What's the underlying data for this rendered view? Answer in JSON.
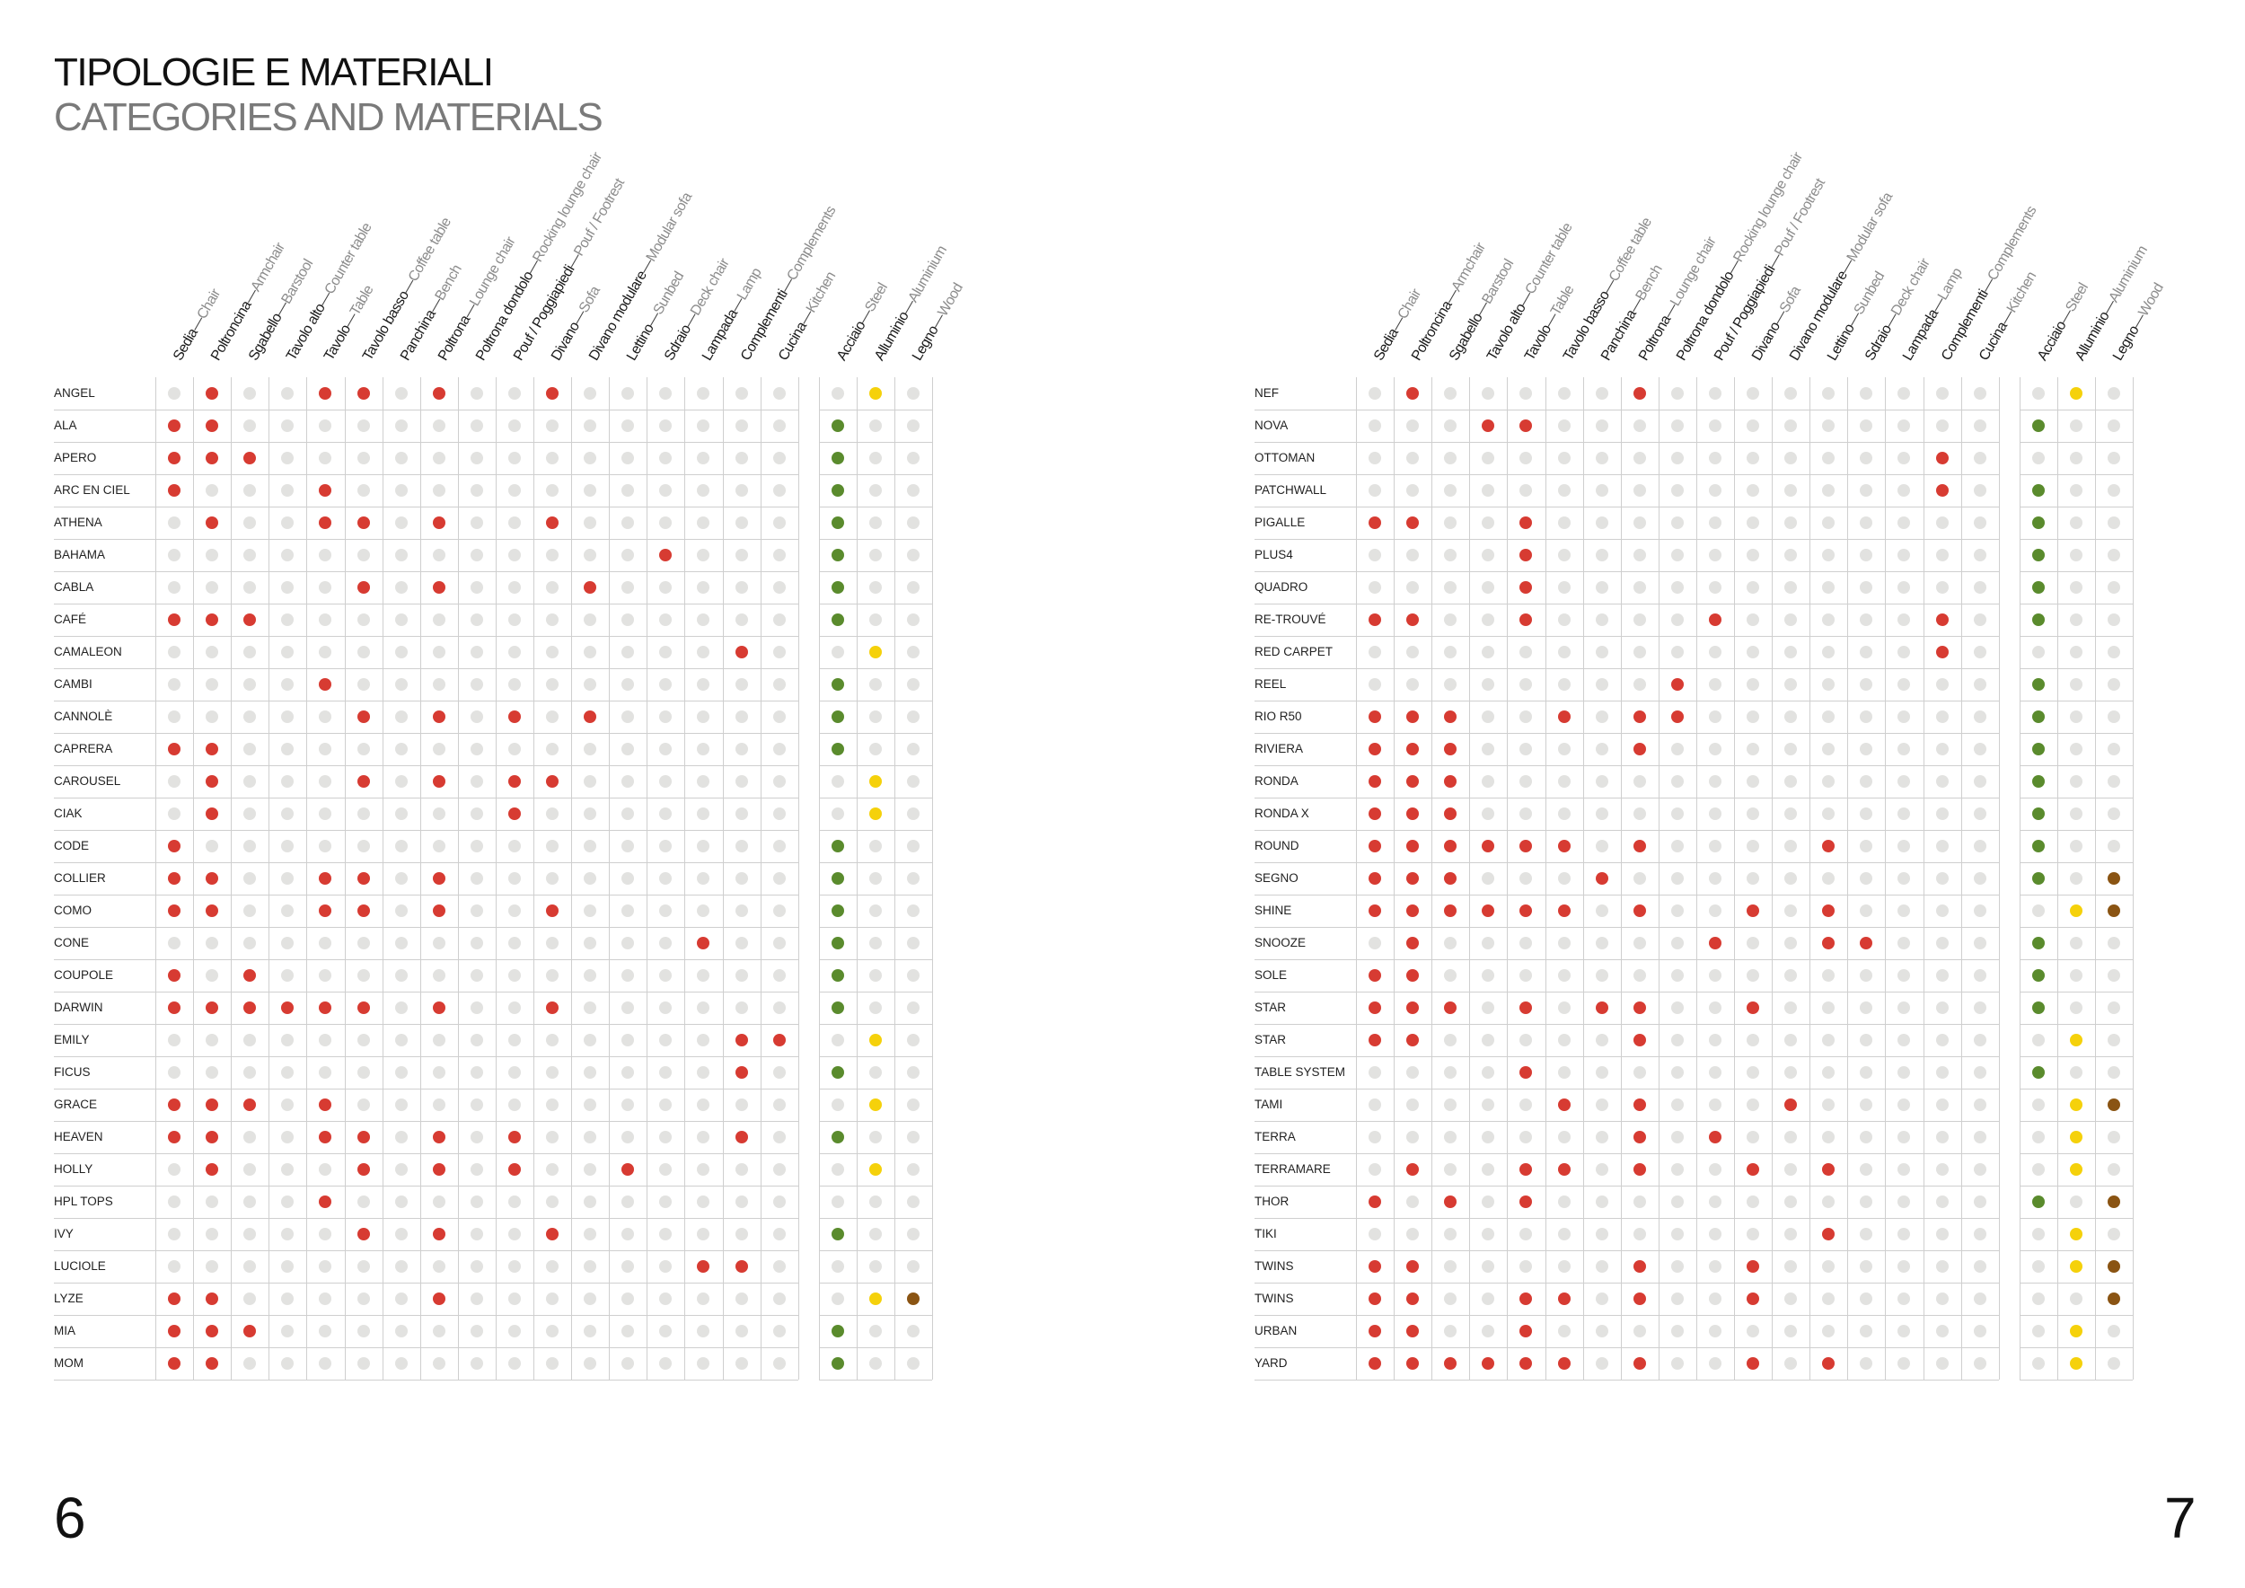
{
  "title": {
    "it": "TIPOLOGIE E MATERIALI",
    "en": "CATEGORIES AND MATERIALS"
  },
  "colors": {
    "category": "#d73b32",
    "steel": "#5a8b2d",
    "aluminium": "#f5d10b",
    "wood": "#8a5413",
    "empty": "#e2e2e0"
  },
  "categories": [
    {
      "it": "Sedia",
      "en": "Chair"
    },
    {
      "it": "Poltroncina",
      "en": "Armchair"
    },
    {
      "it": "Sgabello",
      "en": "Barstool"
    },
    {
      "it": "Tavolo alto",
      "en": "Counter table"
    },
    {
      "it": "Tavolo",
      "en": "Table"
    },
    {
      "it": "Tavolo basso",
      "en": "Coffee table"
    },
    {
      "it": "Panchina",
      "en": "Bench"
    },
    {
      "it": "Poltrona",
      "en": "Lounge chair"
    },
    {
      "it": "Poltrona dondolo",
      "en": "Rocking lounge chair"
    },
    {
      "it": "Pouf / Poggiapiedi",
      "en": "Pouf / Footrest"
    },
    {
      "it": "Divano",
      "en": "Sofa"
    },
    {
      "it": "Divano modulare",
      "en": "Modular sofa"
    },
    {
      "it": "Lettino",
      "en": "Sunbed"
    },
    {
      "it": "Sdraio",
      "en": "Deck chair"
    },
    {
      "it": "Lampada",
      "en": "Lamp"
    },
    {
      "it": "Complementi",
      "en": "Complements"
    },
    {
      "it": "Cucina",
      "en": "Kitchen"
    }
  ],
  "materials": [
    {
      "it": "Acciaio",
      "en": "Steel",
      "key": "steel"
    },
    {
      "it": "Alluminio",
      "en": "Aluminium",
      "key": "alu"
    },
    {
      "it": "Legno",
      "en": "Wood",
      "key": "wood"
    }
  ],
  "pages": [
    {
      "number": "6",
      "products": [
        {
          "name": "ANGEL",
          "cats": [
            1,
            4,
            5,
            7,
            10
          ],
          "mats": [
            "alu"
          ]
        },
        {
          "name": "ALA",
          "cats": [
            0,
            1
          ],
          "mats": [
            "steel"
          ]
        },
        {
          "name": "APERO",
          "cats": [
            0,
            1,
            2
          ],
          "mats": [
            "steel"
          ]
        },
        {
          "name": "ARC EN CIEL",
          "cats": [
            0,
            4
          ],
          "mats": [
            "steel"
          ]
        },
        {
          "name": "ATHENA",
          "cats": [
            1,
            4,
            5,
            7,
            10
          ],
          "mats": [
            "steel"
          ]
        },
        {
          "name": "BAHAMA",
          "cats": [
            13
          ],
          "mats": [
            "steel"
          ]
        },
        {
          "name": "CABLA",
          "cats": [
            5,
            7,
            11
          ],
          "mats": [
            "steel"
          ]
        },
        {
          "name": "CAFÉ",
          "cats": [
            0,
            1,
            2
          ],
          "mats": [
            "steel"
          ]
        },
        {
          "name": "CAMALEON",
          "cats": [
            15
          ],
          "mats": [
            "alu"
          ]
        },
        {
          "name": "CAMBI",
          "cats": [
            4
          ],
          "mats": [
            "steel"
          ]
        },
        {
          "name": "CANNOLÈ",
          "cats": [
            5,
            7,
            9,
            11
          ],
          "mats": [
            "steel"
          ]
        },
        {
          "name": "CAPRERA",
          "cats": [
            0,
            1
          ],
          "mats": [
            "steel"
          ]
        },
        {
          "name": "CAROUSEL",
          "cats": [
            1,
            5,
            7,
            9,
            10
          ],
          "mats": [
            "alu"
          ]
        },
        {
          "name": "CIAK",
          "cats": [
            1,
            9
          ],
          "mats": [
            "alu"
          ]
        },
        {
          "name": "CODE",
          "cats": [
            0
          ],
          "mats": [
            "steel"
          ]
        },
        {
          "name": "COLLIER",
          "cats": [
            0,
            1,
            4,
            5,
            7
          ],
          "mats": [
            "steel"
          ]
        },
        {
          "name": "COMO",
          "cats": [
            0,
            1,
            4,
            5,
            7,
            10
          ],
          "mats": [
            "steel"
          ]
        },
        {
          "name": "CONE",
          "cats": [
            14
          ],
          "mats": [
            "steel"
          ]
        },
        {
          "name": "COUPOLE",
          "cats": [
            0,
            2
          ],
          "mats": [
            "steel"
          ]
        },
        {
          "name": "DARWIN",
          "cats": [
            0,
            1,
            2,
            3,
            4,
            5,
            7,
            10
          ],
          "mats": [
            "steel"
          ]
        },
        {
          "name": "EMILY",
          "cats": [
            15,
            16
          ],
          "mats": [
            "alu"
          ]
        },
        {
          "name": "FICUS",
          "cats": [
            15
          ],
          "mats": [
            "steel"
          ]
        },
        {
          "name": "GRACE",
          "cats": [
            0,
            1,
            2,
            4
          ],
          "mats": [
            "alu"
          ]
        },
        {
          "name": "HEAVEN",
          "cats": [
            0,
            1,
            4,
            5,
            7,
            9,
            15
          ],
          "mats": [
            "steel"
          ]
        },
        {
          "name": "HOLLY",
          "cats": [
            1,
            5,
            7,
            9,
            12
          ],
          "mats": [
            "alu"
          ]
        },
        {
          "name": "HPL TOPS",
          "cats": [
            4
          ],
          "mats": []
        },
        {
          "name": "IVY",
          "cats": [
            5,
            7,
            10
          ],
          "mats": [
            "steel"
          ]
        },
        {
          "name": "LUCIOLE",
          "cats": [
            14,
            15
          ],
          "mats": []
        },
        {
          "name": "LYZE",
          "cats": [
            0,
            1,
            7
          ],
          "mats": [
            "alu",
            "wood"
          ]
        },
        {
          "name": "MIA",
          "cats": [
            0,
            1,
            2
          ],
          "mats": [
            "steel"
          ]
        },
        {
          "name": "MOM",
          "cats": [
            0,
            1
          ],
          "mats": [
            "steel"
          ]
        }
      ]
    },
    {
      "number": "7",
      "products": [
        {
          "name": "NEF",
          "cats": [
            1,
            7
          ],
          "mats": [
            "alu"
          ]
        },
        {
          "name": "NOVA",
          "cats": [
            3,
            4
          ],
          "mats": [
            "steel"
          ]
        },
        {
          "name": "OTTOMAN",
          "cats": [
            15
          ],
          "mats": []
        },
        {
          "name": "PATCHWALL",
          "cats": [
            15
          ],
          "mats": [
            "steel"
          ]
        },
        {
          "name": "PIGALLE",
          "cats": [
            0,
            1,
            4
          ],
          "mats": [
            "steel"
          ]
        },
        {
          "name": "PLUS4",
          "cats": [
            4
          ],
          "mats": [
            "steel"
          ]
        },
        {
          "name": "QUADRO",
          "cats": [
            4
          ],
          "mats": [
            "steel"
          ]
        },
        {
          "name": "RE-TROUVÉ",
          "cats": [
            0,
            1,
            4,
            9,
            15
          ],
          "mats": [
            "steel"
          ]
        },
        {
          "name": "RED CARPET",
          "cats": [
            15
          ],
          "mats": []
        },
        {
          "name": "REEL",
          "cats": [
            8
          ],
          "mats": [
            "steel"
          ]
        },
        {
          "name": "RIO R50",
          "cats": [
            0,
            1,
            2,
            5,
            7,
            8
          ],
          "mats": [
            "steel"
          ]
        },
        {
          "name": "RIVIERA",
          "cats": [
            0,
            1,
            2,
            7
          ],
          "mats": [
            "steel"
          ]
        },
        {
          "name": "RONDA",
          "cats": [
            0,
            1,
            2
          ],
          "mats": [
            "steel"
          ]
        },
        {
          "name": "RONDA X",
          "cats": [
            0,
            1,
            2
          ],
          "mats": [
            "steel"
          ]
        },
        {
          "name": "ROUND",
          "cats": [
            0,
            1,
            2,
            3,
            4,
            5,
            7,
            12
          ],
          "mats": [
            "steel"
          ]
        },
        {
          "name": "SEGNO",
          "cats": [
            0,
            1,
            2,
            6
          ],
          "mats": [
            "steel",
            "wood"
          ]
        },
        {
          "name": "SHINE",
          "cats": [
            0,
            1,
            2,
            3,
            4,
            5,
            7,
            10,
            12
          ],
          "mats": [
            "alu",
            "wood"
          ]
        },
        {
          "name": "SNOOZE",
          "cats": [
            1,
            9,
            12,
            13
          ],
          "mats": [
            "steel"
          ]
        },
        {
          "name": "SOLE",
          "cats": [
            0,
            1
          ],
          "mats": [
            "steel"
          ]
        },
        {
          "name": "STAR",
          "cats": [
            0,
            1,
            2,
            4,
            6,
            7,
            10
          ],
          "mats": [
            "steel"
          ]
        },
        {
          "name": "STAR",
          "cats": [
            0,
            1,
            7
          ],
          "mats": [
            "alu"
          ]
        },
        {
          "name": "TABLE SYSTEM",
          "cats": [
            4
          ],
          "mats": [
            "steel"
          ]
        },
        {
          "name": "TAMI",
          "cats": [
            5,
            7,
            11
          ],
          "mats": [
            "alu",
            "wood"
          ]
        },
        {
          "name": "TERRA",
          "cats": [
            7,
            9
          ],
          "mats": [
            "alu"
          ]
        },
        {
          "name": "TERRAMARE",
          "cats": [
            1,
            4,
            5,
            7,
            10,
            12
          ],
          "mats": [
            "alu"
          ]
        },
        {
          "name": "THOR",
          "cats": [
            0,
            2,
            4
          ],
          "mats": [
            "steel",
            "wood"
          ]
        },
        {
          "name": "TIKI",
          "cats": [
            12
          ],
          "mats": [
            "alu"
          ]
        },
        {
          "name": "TWINS",
          "cats": [
            0,
            1,
            7,
            10
          ],
          "mats": [
            "alu",
            "wood"
          ]
        },
        {
          "name": "TWINS",
          "cats": [
            0,
            1,
            4,
            5,
            7,
            10
          ],
          "mats": [
            "wood"
          ]
        },
        {
          "name": "URBAN",
          "cats": [
            0,
            1,
            4
          ],
          "mats": [
            "alu"
          ]
        },
        {
          "name": "YARD",
          "cats": [
            0,
            1,
            2,
            3,
            4,
            5,
            7,
            10,
            12
          ],
          "mats": [
            "alu"
          ]
        }
      ]
    }
  ]
}
